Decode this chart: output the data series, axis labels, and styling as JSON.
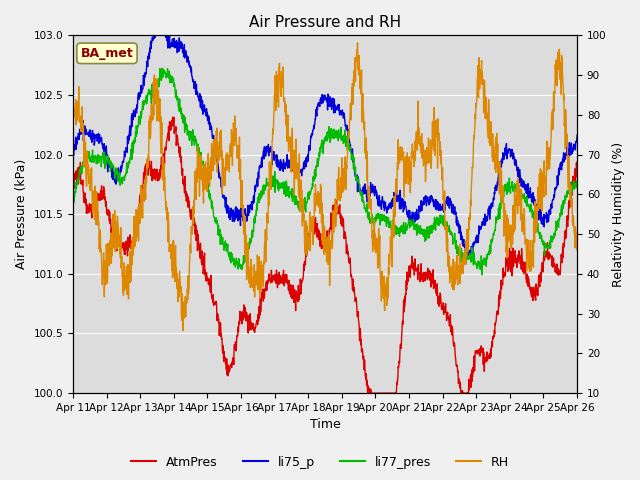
{
  "title": "Air Pressure and RH",
  "xlabel": "Time",
  "ylabel_left": "Air Pressure (kPa)",
  "ylabel_right": "Relativity Humidity (%)",
  "ylim_left": [
    100.0,
    103.0
  ],
  "ylim_right": [
    10,
    100
  ],
  "yticks_left": [
    100.0,
    100.5,
    101.0,
    101.5,
    102.0,
    102.5,
    103.0
  ],
  "yticks_right": [
    10,
    20,
    30,
    40,
    50,
    60,
    70,
    80,
    90,
    100
  ],
  "xtick_labels": [
    "Apr 11",
    "Apr 12",
    "Apr 13",
    "Apr 14",
    "Apr 15",
    "Apr 16",
    "Apr 17",
    "Apr 18",
    "Apr 19",
    "Apr 20",
    "Apr 21",
    "Apr 22",
    "Apr 23",
    "Apr 24",
    "Apr 25",
    "Apr 26"
  ],
  "legend_labels": [
    "AtmPres",
    "li75_p",
    "li77_pres",
    "RH"
  ],
  "colors": {
    "AtmPres": "#dd0000",
    "li75_p": "#0000dd",
    "li77_pres": "#00bb00",
    "RH": "#dd8800"
  },
  "plot_bg": "#dcdcdc",
  "fig_bg": "#f0f0f0",
  "annotation_text": "BA_met",
  "annotation_color": "#880000",
  "annotation_bg": "#ffffcc",
  "annotation_edge": "#888844",
  "title_fontsize": 11,
  "axis_label_fontsize": 9,
  "tick_fontsize": 7.5,
  "legend_fontsize": 9,
  "line_width": 1.0
}
